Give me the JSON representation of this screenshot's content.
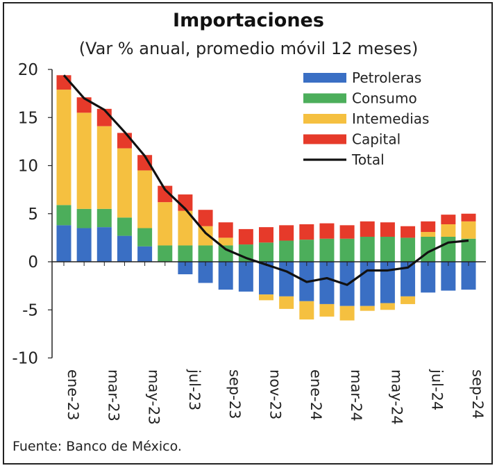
{
  "chart_data": {
    "type": "bar",
    "title": "Importaciones",
    "subtitle": "(Var % anual, promedio móvil 12 meses)",
    "source": "Fuente: Banco de México.",
    "xlabel": "",
    "ylabel": "",
    "ylim": [
      -10,
      20
    ],
    "yticks": [
      20,
      15,
      10,
      5,
      0,
      -5,
      -10
    ],
    "ytick_labels": [
      "20",
      "15",
      "10",
      "5",
      "0",
      "-5",
      "-10"
    ],
    "categories": [
      "ene-23",
      "feb-23",
      "mar-23",
      "abr-23",
      "may-23",
      "jun-23",
      "jul-23",
      "ago-23",
      "sep-23",
      "oct-23",
      "nov-23",
      "dic-23",
      "ene-24",
      "feb-24",
      "mar-24",
      "abr-24",
      "may-24",
      "jun-24",
      "jul-24",
      "ago-24",
      "sep-24"
    ],
    "xtick_labels": [
      "ene-23",
      "mar-23",
      "may-23",
      "jul-23",
      "sep-23",
      "nov-23",
      "ene-24",
      "mar-24",
      "may-24",
      "jul-24",
      "sep-24"
    ],
    "series": [
      {
        "name": "Petroleras",
        "type": "bar",
        "color": "#3a6fc4",
        "values": [
          3.8,
          3.5,
          3.6,
          2.7,
          1.6,
          0.0,
          -1.3,
          -2.2,
          -2.9,
          -3.1,
          -3.4,
          -3.6,
          -4.1,
          -4.4,
          -4.6,
          -4.6,
          -4.3,
          -3.6,
          -3.2,
          -3.0,
          -2.9
        ]
      },
      {
        "name": "Consumo",
        "type": "bar",
        "color": "#4cae5b",
        "values": [
          2.1,
          2.0,
          1.9,
          1.9,
          1.9,
          1.7,
          1.7,
          1.7,
          1.7,
          1.8,
          2.0,
          2.2,
          2.3,
          2.4,
          2.4,
          2.6,
          2.6,
          2.5,
          2.6,
          2.6,
          2.4
        ]
      },
      {
        "name": "Intemedias",
        "type": "bar",
        "color": "#f5c040",
        "values": [
          12.0,
          10.0,
          8.6,
          7.2,
          6.0,
          4.5,
          3.6,
          2.0,
          0.8,
          0.0,
          -0.6,
          -1.3,
          -1.9,
          -1.3,
          -1.5,
          -0.5,
          -0.7,
          -0.8,
          0.5,
          1.3,
          1.8
        ]
      },
      {
        "name": "Capital",
        "type": "bar",
        "color": "#e63a2a",
        "values": [
          1.5,
          1.6,
          1.8,
          1.6,
          1.6,
          1.7,
          1.7,
          1.7,
          1.6,
          1.6,
          1.6,
          1.6,
          1.6,
          1.6,
          1.4,
          1.6,
          1.5,
          1.2,
          1.1,
          1.0,
          0.8
        ]
      },
      {
        "name": "Total",
        "type": "line",
        "color": "#111111",
        "values": [
          19.4,
          17.0,
          15.8,
          13.5,
          11.0,
          7.5,
          5.5,
          3.0,
          1.3,
          0.4,
          -0.3,
          -1.0,
          -2.1,
          -1.7,
          -2.4,
          -0.9,
          -0.9,
          -0.6,
          1.0,
          2.0,
          2.2
        ]
      }
    ],
    "legend_position": "top-right",
    "grid": false
  }
}
